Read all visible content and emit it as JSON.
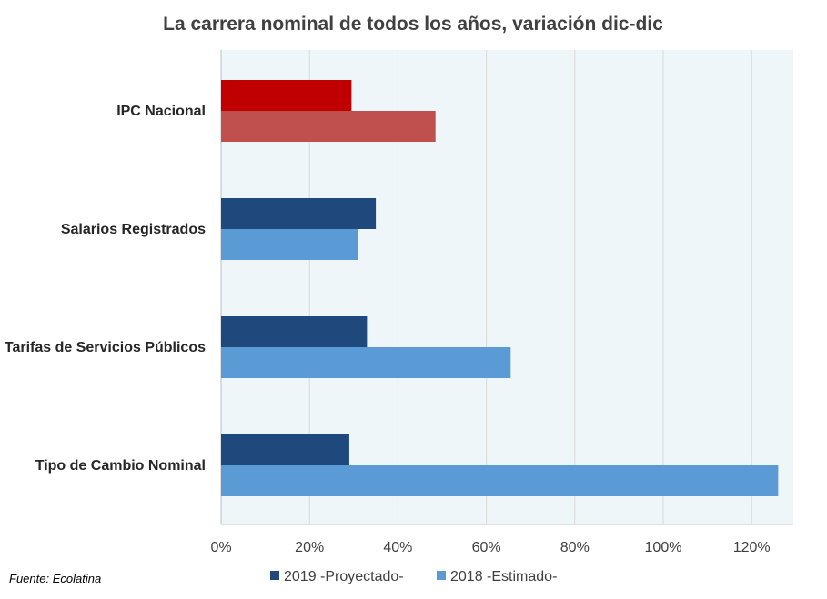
{
  "chart_data": {
    "type": "bar",
    "orientation": "horizontal",
    "title": "La carrera nominal de todos los años, variación dic-dic",
    "categories": [
      "IPC Nacional",
      "Salarios Registrados",
      "Tarifas de Servicios Públicos",
      "Tipo de Cambio Nominal"
    ],
    "series": [
      {
        "name": "2019 -Proyectado-",
        "values": [
          29.5,
          35,
          33,
          29
        ],
        "color": "#1F497D",
        "highlight_colors": [
          "#C00000",
          null,
          null,
          null
        ]
      },
      {
        "name": "2018 -Estimado-",
        "values": [
          48.5,
          31,
          65.5,
          126
        ],
        "color": "#5B9BD5",
        "highlight_colors": [
          "#C0504D",
          null,
          null,
          null
        ]
      }
    ],
    "xlim": [
      0,
      130
    ],
    "x_ticks": [
      0,
      20,
      40,
      60,
      80,
      100,
      120
    ],
    "x_tick_labels": [
      "0%",
      "20%",
      "40%",
      "60%",
      "80%",
      "100%",
      "120%"
    ],
    "xlabel": "",
    "ylabel": "",
    "grid": true,
    "plot_background": "#EEF6F9",
    "grid_color": "#D9D9D9",
    "legend_position": "bottom"
  },
  "footer": {
    "source": "Fuente: Ecolatina"
  }
}
